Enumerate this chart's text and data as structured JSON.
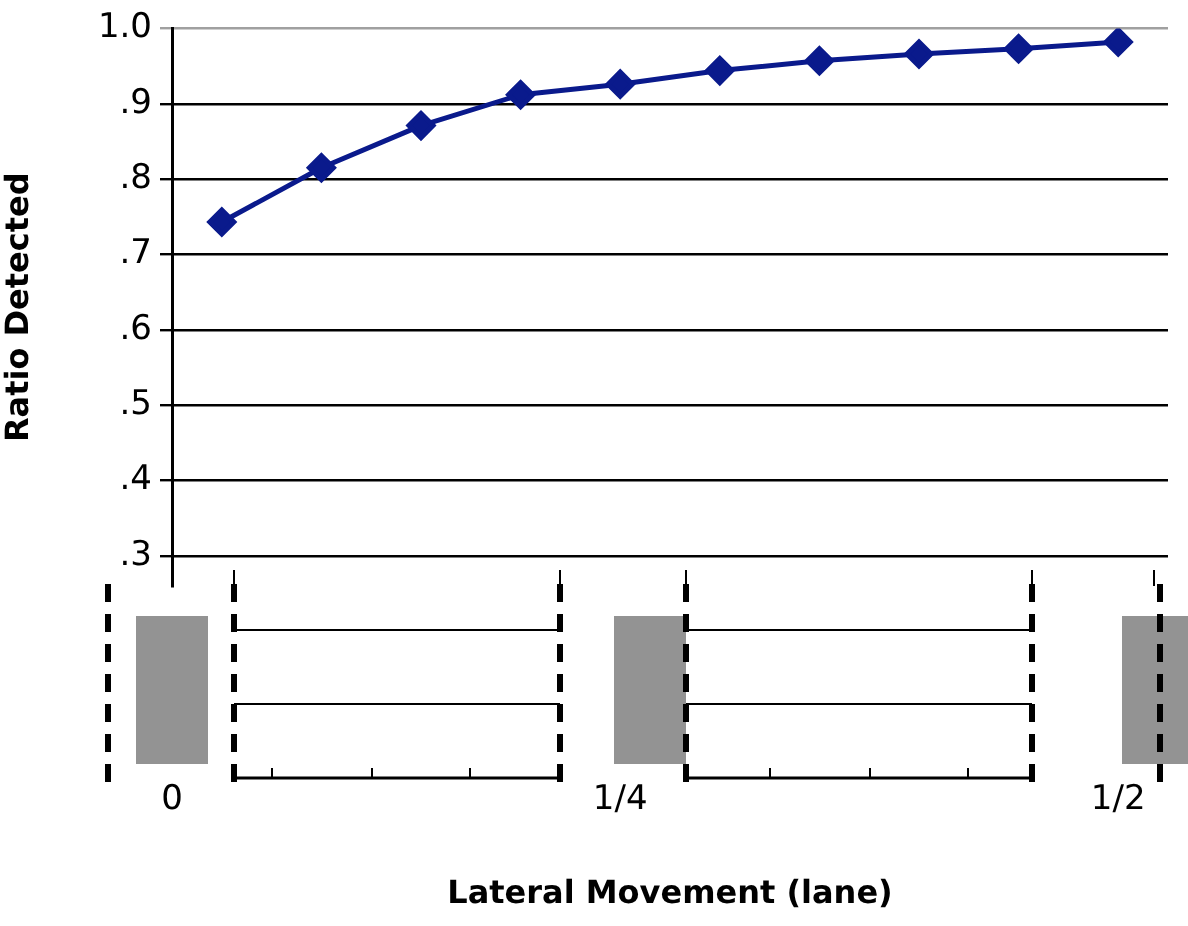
{
  "chart_data": {
    "type": "line",
    "xlabel": "Lateral Movement (lane)",
    "ylabel": "Ratio Detected",
    "x": [
      0.05,
      0.1,
      0.15,
      0.2,
      0.25,
      0.3,
      0.35,
      0.4,
      0.45,
      0.5
    ],
    "series": [
      {
        "color": "#0a1a8c",
        "values": [
          0.743,
          0.815,
          0.871,
          0.912,
          0.926,
          0.944,
          0.957,
          0.966,
          0.973,
          0.982
        ]
      }
    ],
    "xlim": [
      0.025,
      0.525
    ],
    "xticks": [
      {
        "value": 0.025,
        "label": "0"
      },
      {
        "value": 0.25,
        "label": "1/4"
      },
      {
        "value": 0.5,
        "label": "1/2"
      }
    ],
    "ylim": [
      0.26,
      1.0
    ],
    "yticks": [
      {
        "value": 0.3,
        "label": ".3"
      },
      {
        "value": 0.4,
        "label": ".4"
      },
      {
        "value": 0.5,
        "label": ".5"
      },
      {
        "value": 0.6,
        "label": ".6"
      },
      {
        "value": 0.7,
        "label": ".7"
      },
      {
        "value": 0.8,
        "label": ".8"
      },
      {
        "value": 0.9,
        "label": ".9"
      },
      {
        "value": 1.0,
        "label": "1.0"
      }
    ],
    "grid": "y",
    "legend": false,
    "marker": "diamond",
    "line_style": "solid"
  }
}
